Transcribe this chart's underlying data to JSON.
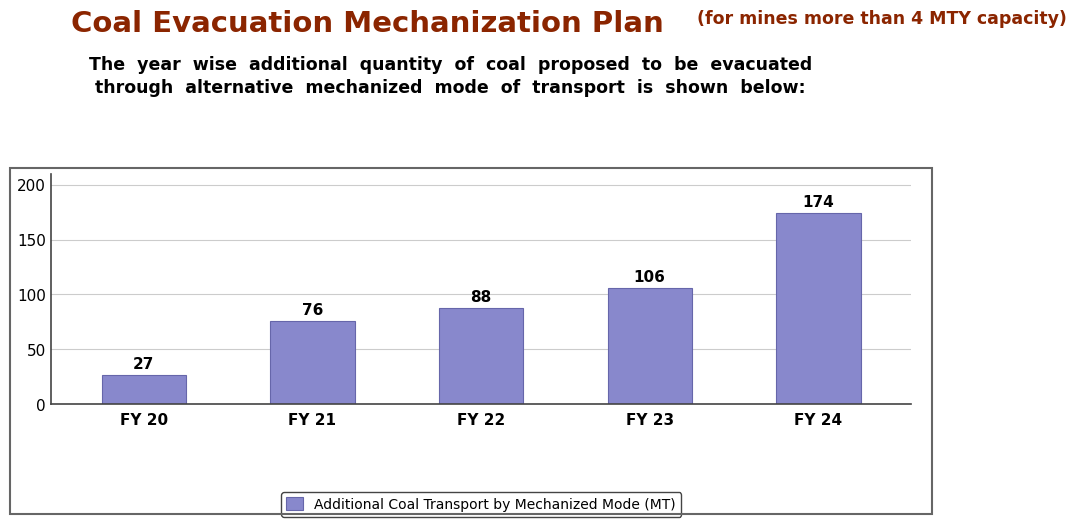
{
  "title_main": "Coal Evacuation Mechanization Plan",
  "title_sub": " (for mines more than 4 MTY capacity)",
  "subtitle_line1": "The  year  wise  additional  quantity  of  coal  proposed  to  be  evacuated",
  "subtitle_line2": "through  alternative  mechanized  mode  of  transport  is  shown  below:",
  "categories": [
    "FY 20",
    "FY 21",
    "FY 22",
    "FY 23",
    "FY 24"
  ],
  "values": [
    27,
    76,
    88,
    106,
    174
  ],
  "bar_color": "#8888cc",
  "bar_edge_color": "#6666aa",
  "title_main_color": "#8B2500",
  "title_sub_color": "#8B2500",
  "subtitle_color": "#000000",
  "background_color": "#ffffff",
  "chart_bg_color": "#ffffff",
  "ylim": [
    0,
    210
  ],
  "yticks": [
    0,
    50,
    100,
    150,
    200
  ],
  "legend_label": "Additional Coal Transport by Mechanized Mode (MT)",
  "grid_color": "#cccccc"
}
